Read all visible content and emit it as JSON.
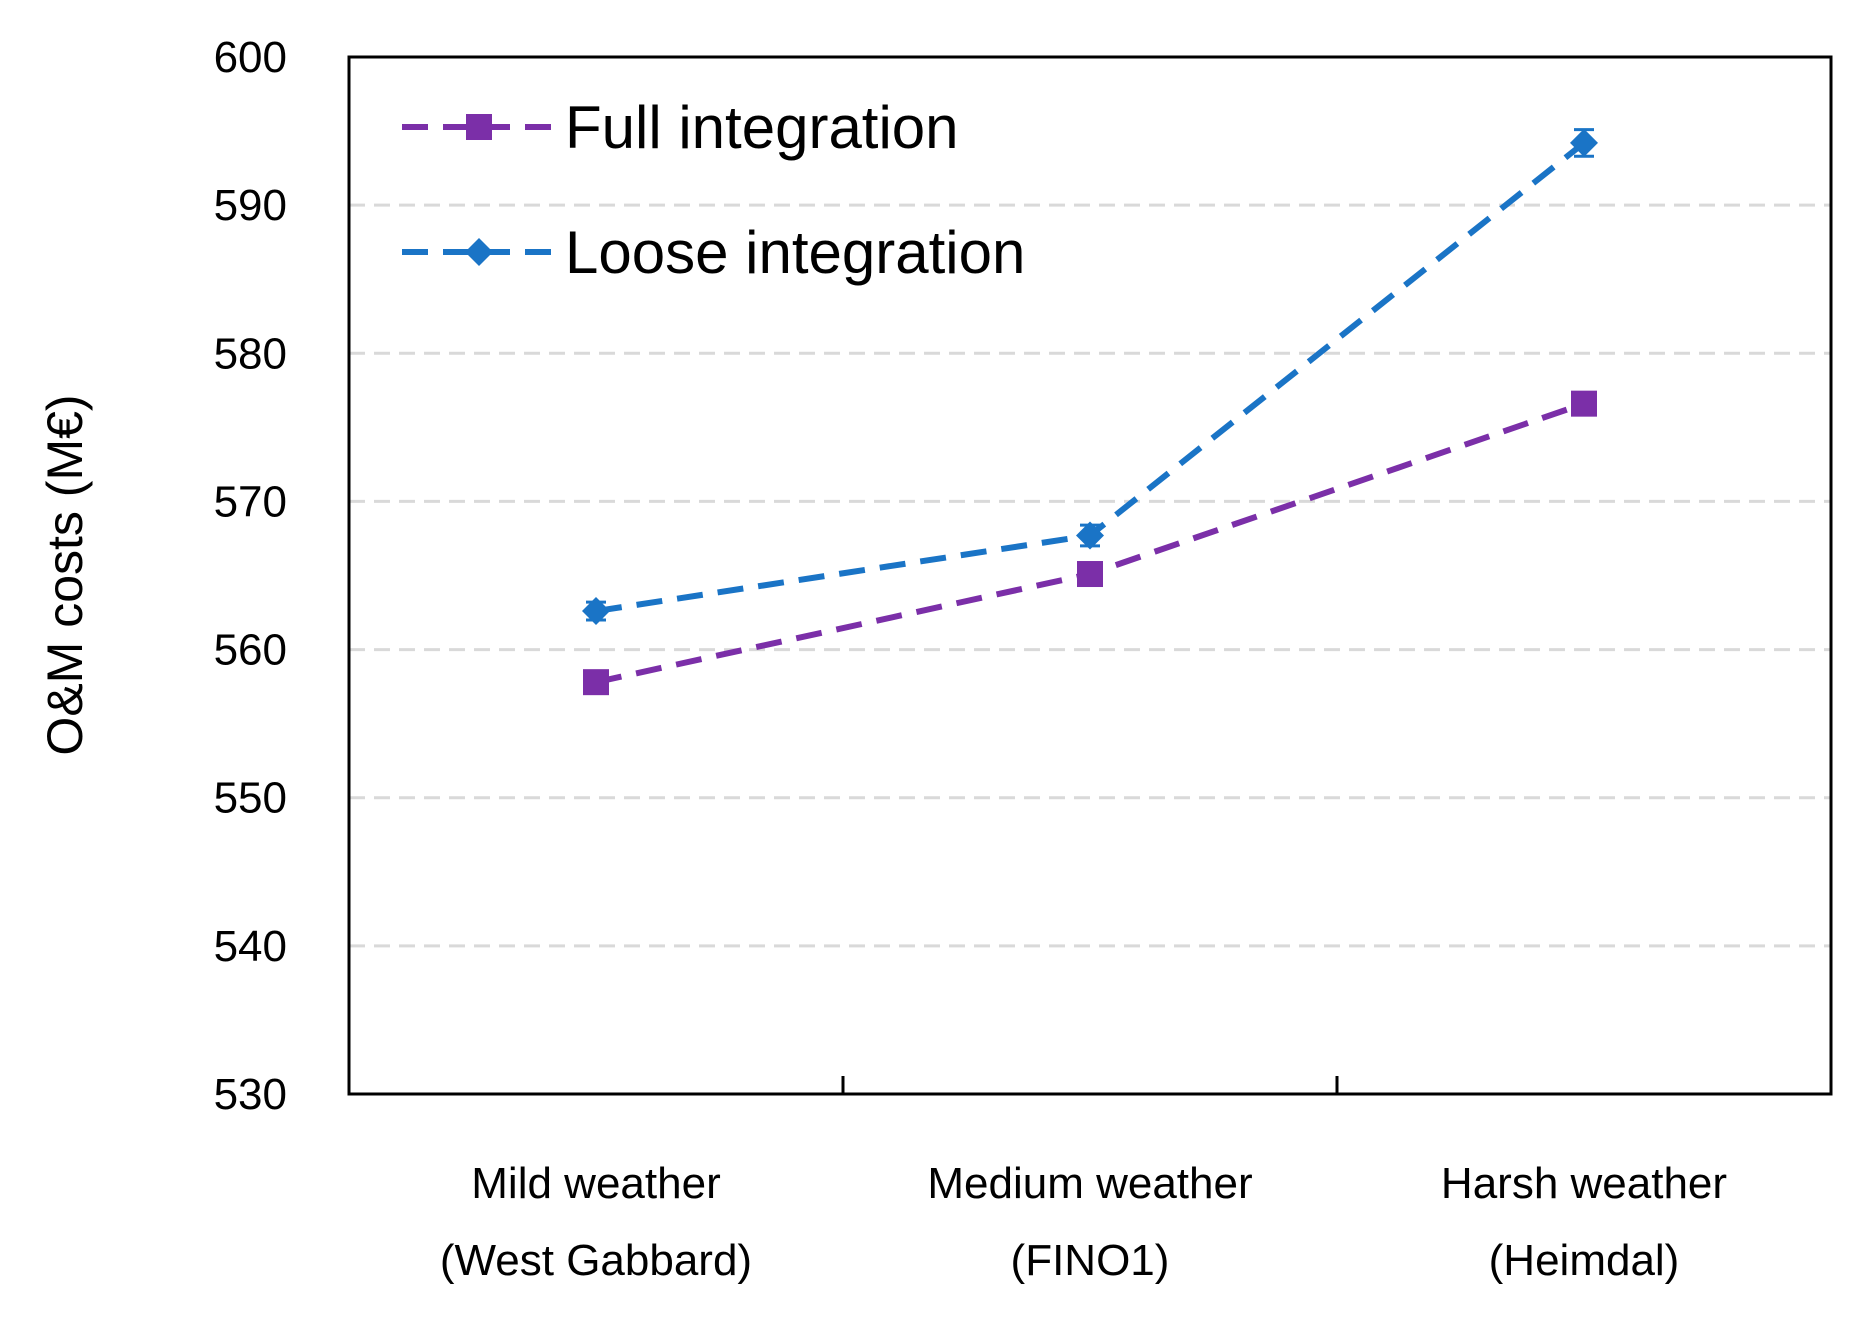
{
  "chart_data": {
    "type": "line",
    "title": "",
    "xlabel": "",
    "ylabel": "O&M costs (M€)",
    "ylim": [
      530,
      600
    ],
    "yticks": [
      530,
      540,
      550,
      560,
      570,
      580,
      590,
      600
    ],
    "grid": "horizontal dashed",
    "legend_position": "top-left",
    "categories": [
      [
        "Mild weather",
        "(West Gabbard)"
      ],
      [
        "Medium weather",
        "(FINO1)"
      ],
      [
        "Harsh weather",
        "(Heimdal)"
      ]
    ],
    "series": [
      {
        "name": "Full integration",
        "marker": "square",
        "color": "#7B2FA8",
        "values": [
          557.8,
          565.1,
          576.6
        ],
        "errors": [
          0.6,
          0.6,
          0.5
        ]
      },
      {
        "name": "Loose integration",
        "marker": "diamond",
        "color": "#1A74C6",
        "values": [
          562.6,
          567.7,
          594.2
        ],
        "errors": [
          0.6,
          0.7,
          0.9
        ]
      }
    ]
  }
}
